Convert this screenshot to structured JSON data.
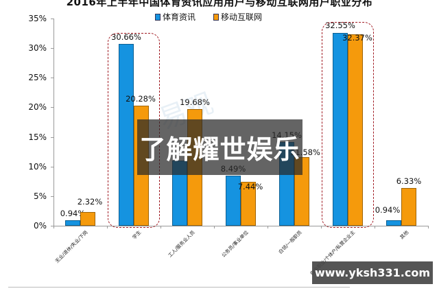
{
  "title": "2016年上半年中国体育资讯应用用户与移动互联网用户职业分布",
  "legend": [
    {
      "label": "体育资讯",
      "color": "#1593e0"
    },
    {
      "label": "移动互联网",
      "color": "#f59a0c"
    }
  ],
  "overlay": {
    "banner_text": "了解耀世娱乐",
    "url_text": "www.yksh331.com",
    "faint_watermark": "易观"
  },
  "chart_data": {
    "type": "bar",
    "title": "2016年上半年中国体育资讯应用用户与移动互联网用户职业分布",
    "xlabel": "",
    "ylabel": "",
    "ylim": [
      0,
      35
    ],
    "yticks": [
      "0%",
      "5%",
      "10%",
      "15%",
      "20%",
      "25%",
      "30%",
      "35%"
    ],
    "grid": false,
    "legend_position": "top",
    "categories": [
      "无业/退休/失业/下岗",
      "学生",
      "工人/服务业人员",
      "公务员/事业单位",
      "白领/一般职员",
      "自由职业/个体户/私营企业主",
      "其他"
    ],
    "series": [
      {
        "name": "体育资讯",
        "color": "#1593e0",
        "values": [
          0.94,
          30.66,
          11.0,
          8.49,
          14.15,
          32.55,
          0.94
        ],
        "labels": [
          "0.94%",
          "30.66%",
          "",
          "8.49%",
          "14.15%",
          "32.55%",
          "0.94%"
        ]
      },
      {
        "name": "移动互联网",
        "color": "#f59a0c",
        "values": [
          2.32,
          20.28,
          19.68,
          7.44,
          11.58,
          32.37,
          6.33
        ],
        "labels": [
          "2.32%",
          "20.28%",
          "19.68%",
          "7.44%",
          "11.58%",
          "32.37%",
          "6.33%"
        ]
      }
    ],
    "highlighted_categories": [
      "学生",
      "自由职业/个体户/私营企业主"
    ]
  }
}
